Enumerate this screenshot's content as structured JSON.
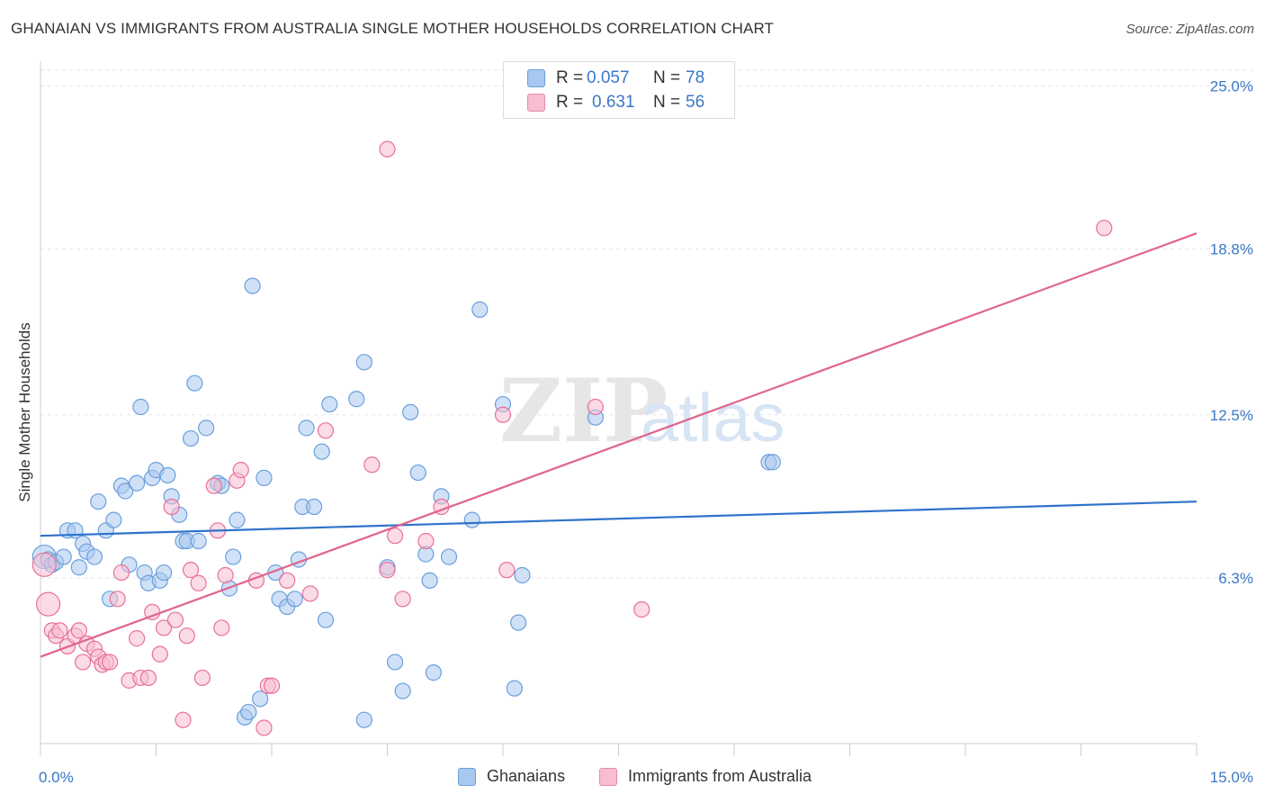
{
  "title": "GHANAIAN VS IMMIGRANTS FROM AUSTRALIA SINGLE MOTHER HOUSEHOLDS CORRELATION CHART",
  "source": "Source: ZipAtlas.com",
  "legend_stats": [
    {
      "r_label": "R =",
      "r_value": "0.057",
      "n_label": "N =",
      "n_value": "78",
      "color": "#a9c8f0",
      "border": "#6a9fdc"
    },
    {
      "r_label": "R =",
      "r_value": "0.631",
      "n_label": "N =",
      "n_value": "56",
      "color": "#f7bdd0",
      "border": "#e88aa8"
    }
  ],
  "chart_data": {
    "type": "scatter",
    "title": "GHANAIAN VS IMMIGRANTS FROM AUSTRALIA SINGLE MOTHER HOUSEHOLDS CORRELATION CHART",
    "xlabel": "",
    "ylabel": "Single Mother Households",
    "xlim": [
      0,
      15
    ],
    "ylim": [
      0,
      25.6
    ],
    "x_tick_labels": [
      "0.0%",
      "15.0%"
    ],
    "y_tick_labels": [
      "25.0%",
      "18.8%",
      "12.5%",
      "6.3%"
    ],
    "y_tick_values": [
      25.0,
      18.8,
      12.5,
      6.3
    ],
    "grid": true,
    "legend_position": "bottom-center",
    "series": [
      {
        "name": "Ghanaians",
        "color": "#6a9fdc",
        "fill": "#a9c8f0",
        "trend": [
          [
            0,
            7.9
          ],
          [
            15,
            9.2
          ]
        ],
        "points": [
          [
            0.05,
            7.1
          ],
          [
            0.1,
            7.0
          ],
          [
            0.15,
            6.8
          ],
          [
            0.2,
            6.9
          ],
          [
            0.3,
            7.1
          ],
          [
            0.35,
            8.1
          ],
          [
            0.45,
            8.1
          ],
          [
            0.5,
            6.7
          ],
          [
            0.55,
            7.6
          ],
          [
            0.6,
            7.3
          ],
          [
            0.7,
            7.1
          ],
          [
            0.75,
            9.2
          ],
          [
            0.85,
            8.1
          ],
          [
            0.9,
            5.5
          ],
          [
            0.95,
            8.5
          ],
          [
            1.05,
            9.8
          ],
          [
            1.1,
            9.6
          ],
          [
            1.15,
            6.8
          ],
          [
            1.25,
            9.9
          ],
          [
            1.3,
            12.8
          ],
          [
            1.35,
            6.5
          ],
          [
            1.4,
            6.1
          ],
          [
            1.45,
            10.1
          ],
          [
            1.5,
            10.4
          ],
          [
            1.55,
            6.2
          ],
          [
            1.6,
            6.5
          ],
          [
            1.65,
            10.2
          ],
          [
            1.7,
            9.4
          ],
          [
            1.8,
            8.7
          ],
          [
            1.85,
            7.7
          ],
          [
            1.9,
            7.7
          ],
          [
            1.95,
            11.6
          ],
          [
            2.0,
            13.7
          ],
          [
            2.05,
            7.7
          ],
          [
            2.15,
            12.0
          ],
          [
            2.3,
            9.9
          ],
          [
            2.35,
            9.8
          ],
          [
            2.45,
            5.9
          ],
          [
            2.5,
            7.1
          ],
          [
            2.55,
            8.5
          ],
          [
            2.65,
            1.0
          ],
          [
            2.7,
            1.2
          ],
          [
            2.75,
            17.4
          ],
          [
            2.85,
            1.7
          ],
          [
            2.9,
            10.1
          ],
          [
            3.05,
            6.5
          ],
          [
            3.1,
            5.5
          ],
          [
            3.2,
            5.2
          ],
          [
            3.3,
            5.5
          ],
          [
            3.35,
            7.0
          ],
          [
            3.4,
            9.0
          ],
          [
            3.45,
            12.0
          ],
          [
            3.55,
            9.0
          ],
          [
            3.65,
            11.1
          ],
          [
            3.7,
            4.7
          ],
          [
            3.75,
            12.9
          ],
          [
            4.1,
            13.1
          ],
          [
            4.2,
            14.5
          ],
          [
            4.2,
            0.9
          ],
          [
            4.5,
            6.7
          ],
          [
            4.6,
            3.1
          ],
          [
            4.7,
            2.0
          ],
          [
            4.8,
            12.6
          ],
          [
            4.9,
            10.3
          ],
          [
            5.0,
            7.2
          ],
          [
            5.05,
            6.2
          ],
          [
            5.1,
            2.7
          ],
          [
            5.2,
            9.4
          ],
          [
            5.3,
            7.1
          ],
          [
            5.6,
            8.5
          ],
          [
            5.7,
            16.5
          ],
          [
            6.0,
            12.9
          ],
          [
            6.15,
            2.1
          ],
          [
            6.2,
            4.6
          ],
          [
            6.25,
            6.4
          ],
          [
            7.2,
            12.4
          ],
          [
            9.45,
            10.7
          ],
          [
            9.5,
            10.7
          ]
        ]
      },
      {
        "name": "Immigrants from Australia",
        "color": "#e8709a",
        "fill": "#f7bdd0",
        "trend": [
          [
            0,
            3.3
          ],
          [
            15,
            19.4
          ]
        ],
        "points": [
          [
            0.05,
            6.8
          ],
          [
            0.1,
            5.3
          ],
          [
            0.15,
            4.3
          ],
          [
            0.2,
            4.1
          ],
          [
            0.25,
            4.3
          ],
          [
            0.35,
            3.7
          ],
          [
            0.45,
            4.1
          ],
          [
            0.5,
            4.3
          ],
          [
            0.55,
            3.1
          ],
          [
            0.6,
            3.8
          ],
          [
            0.7,
            3.6
          ],
          [
            0.75,
            3.3
          ],
          [
            0.8,
            3.0
          ],
          [
            0.85,
            3.1
          ],
          [
            0.9,
            3.1
          ],
          [
            1.0,
            5.5
          ],
          [
            1.05,
            6.5
          ],
          [
            1.15,
            2.4
          ],
          [
            1.25,
            4.0
          ],
          [
            1.3,
            2.5
          ],
          [
            1.4,
            2.5
          ],
          [
            1.45,
            5.0
          ],
          [
            1.55,
            3.4
          ],
          [
            1.6,
            4.4
          ],
          [
            1.7,
            9.0
          ],
          [
            1.75,
            4.7
          ],
          [
            1.85,
            0.9
          ],
          [
            1.9,
            4.1
          ],
          [
            1.95,
            6.6
          ],
          [
            2.05,
            6.1
          ],
          [
            2.1,
            2.5
          ],
          [
            2.25,
            9.8
          ],
          [
            2.3,
            8.1
          ],
          [
            2.35,
            4.4
          ],
          [
            2.4,
            6.4
          ],
          [
            2.55,
            10.0
          ],
          [
            2.6,
            10.4
          ],
          [
            2.8,
            6.2
          ],
          [
            2.9,
            0.6
          ],
          [
            2.95,
            2.2
          ],
          [
            3.0,
            2.2
          ],
          [
            3.2,
            6.2
          ],
          [
            3.5,
            5.7
          ],
          [
            3.7,
            11.9
          ],
          [
            4.3,
            10.6
          ],
          [
            4.5,
            6.6
          ],
          [
            4.6,
            7.9
          ],
          [
            4.7,
            5.5
          ],
          [
            4.5,
            22.6
          ],
          [
            5.0,
            7.7
          ],
          [
            5.2,
            9.0
          ],
          [
            6.0,
            12.5
          ],
          [
            6.05,
            6.6
          ],
          [
            7.2,
            12.8
          ],
          [
            7.8,
            5.1
          ],
          [
            13.8,
            19.6
          ]
        ]
      }
    ]
  },
  "bottom_legend": [
    {
      "label": "Ghanaians",
      "color": "#a9c8f0",
      "border": "#6a9fdc"
    },
    {
      "label": "Immigrants from Australia",
      "color": "#f7bdd0",
      "border": "#e88aa8"
    }
  ]
}
